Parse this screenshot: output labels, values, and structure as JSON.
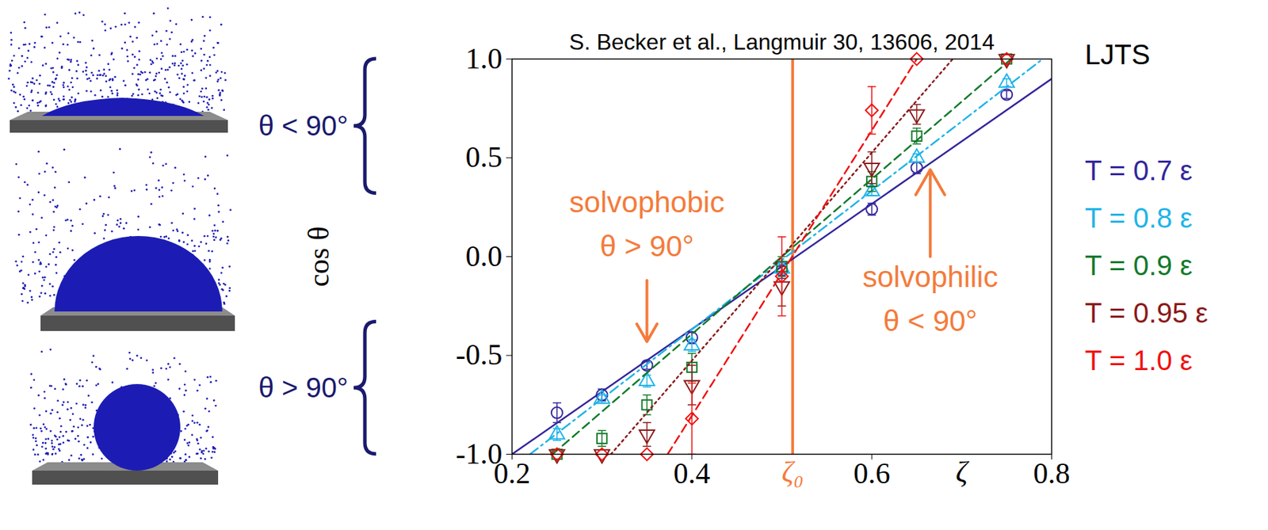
{
  "chart_data": {
    "type": "scatter",
    "title": "S. Becker et al., Langmuir 30, 13606, 2014",
    "x_label": "ζ",
    "y_label": "cos θ",
    "xlim": [
      0.2,
      0.8
    ],
    "xticks": [
      0.2,
      0.4,
      0.6,
      0.8
    ],
    "ylim": [
      -1,
      1
    ],
    "yticks": [
      {
        "value": -1,
        "label": "-1.0"
      },
      -0.5,
      {
        "value": 0,
        "label": "0.0"
      },
      0.5,
      {
        "value": 1,
        "label": "1.0"
      }
    ],
    "legend": "right",
    "legend_title": "LJTS",
    "reference_line": {
      "x": 0.512,
      "label": "ζ₀",
      "color": "#f47b3b"
    },
    "x": [
      0.25,
      0.3,
      0.35,
      0.4,
      0.5,
      0.6,
      0.65,
      0.75
    ],
    "series": [
      {
        "name": "T = 0.7 ε",
        "color": "#33269c",
        "marker": "circle",
        "line_style": "solid",
        "values": [
          -0.79,
          -0.7,
          -0.55,
          -0.41,
          -0.07,
          0.24,
          0.45,
          0.82
        ],
        "errors": [
          0.05,
          0.03,
          0.02,
          0.03,
          0.04,
          0.03,
          0.03,
          0.02
        ],
        "fit": {
          "x": [
            0.2,
            0.8
          ],
          "y": [
            -1.0,
            0.9
          ]
        }
      },
      {
        "name": "T = 0.8 ε",
        "color": "#1fb4e8",
        "marker": "triangle",
        "line_style": "dashdot",
        "values": [
          -0.9,
          -0.72,
          -0.63,
          -0.45,
          -0.06,
          0.33,
          0.5,
          0.88
        ],
        "errors": [
          0.03,
          0.02,
          0.03,
          0.03,
          0.03,
          0.02,
          0.02,
          0.02
        ],
        "fit": {
          "x": [
            0.22,
            0.79
          ],
          "y": [
            -1.0,
            1.0
          ]
        }
      },
      {
        "name": "T = 0.9 ε",
        "color": "#127a2a",
        "marker": "square",
        "line_style": "dashed",
        "values": [
          -1.0,
          -0.92,
          -0.75,
          -0.56,
          -0.05,
          0.38,
          0.61,
          1.0
        ],
        "errors": [
          null,
          0.04,
          0.05,
          0.07,
          0.05,
          0.05,
          0.04,
          null
        ],
        "fit": {
          "x": [
            0.245,
            0.755
          ],
          "y": [
            -1.0,
            1.0
          ]
        }
      },
      {
        "name": "T = 0.95 ε",
        "color": "#8b1a1a",
        "marker": "triangle-down",
        "line_style": "dotted",
        "values": [
          -1.0,
          -1.0,
          -0.9,
          -0.65,
          -0.15,
          0.45,
          0.72,
          1.0
        ],
        "errors": [
          null,
          null,
          0.06,
          0.1,
          0.1,
          0.08,
          0.05,
          null
        ],
        "fit": {
          "x": [
            0.31,
            0.69
          ],
          "y": [
            -1.0,
            1.0
          ]
        }
      },
      {
        "name": "T = 1.0 ε",
        "color": "#f01010",
        "marker": "diamond",
        "line_style": "dashed",
        "values": [
          -1.0,
          -1.0,
          -1.0,
          -0.82,
          -0.1,
          0.74,
          1.0,
          1.0
        ],
        "errors": [
          null,
          null,
          null,
          0.18,
          0.2,
          0.12,
          null,
          null
        ],
        "fit": {
          "x": [
            0.373,
            0.65
          ],
          "y": [
            -1.0,
            1.0
          ]
        }
      }
    ],
    "annotations": [
      {
        "text": [
          "solvophobic",
          "θ > 90°"
        ],
        "color": "#f47b3b"
      },
      {
        "text": [
          "solvophilic",
          "θ < 90°"
        ],
        "color": "#f47b3b"
      },
      {
        "text": [
          "θ < 90°"
        ],
        "color": "#1a1a6e"
      },
      {
        "text": [
          "θ > 90°"
        ],
        "color": "#1a1a6e"
      }
    ]
  }
}
